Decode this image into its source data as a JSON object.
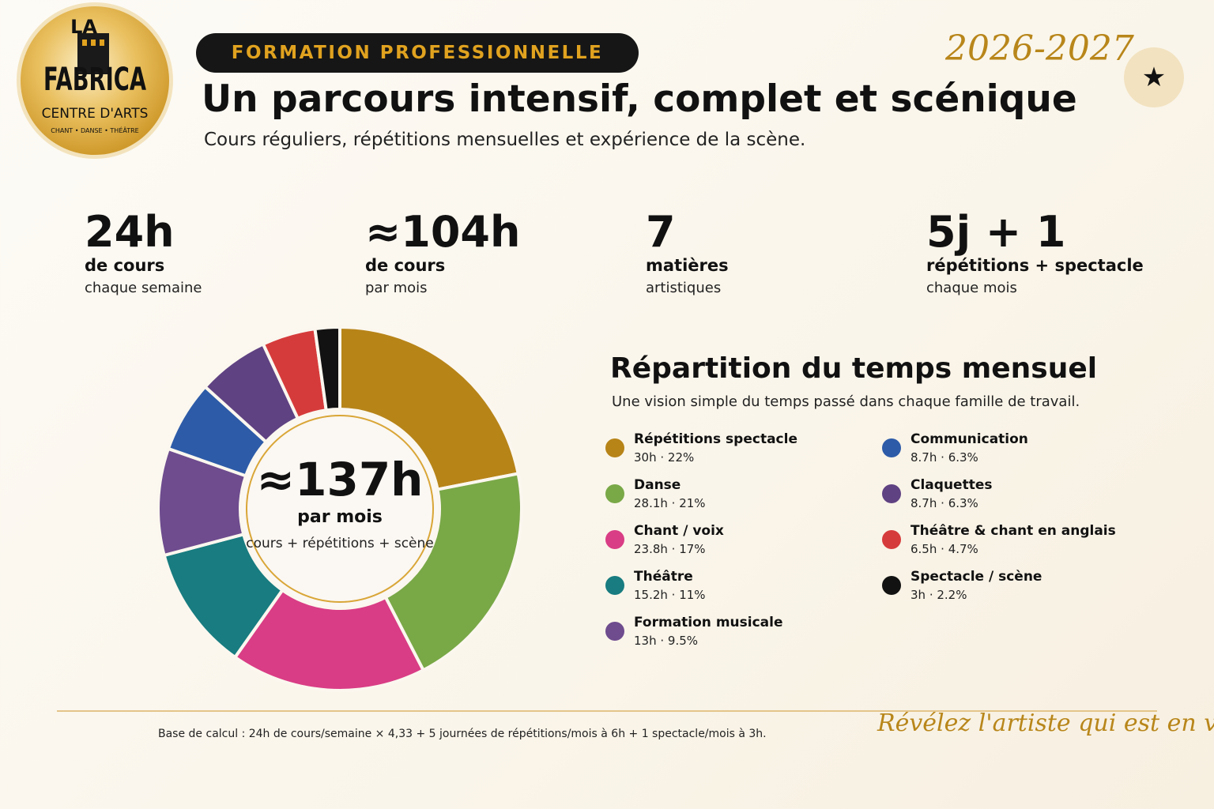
{
  "brand": {
    "logo_top": "LA",
    "logo_main": "FABRICA",
    "logo_sub": "CENTRE D'ARTS",
    "logo_tagline": "CHANT • DANSE • THÉÂTRE",
    "accent": "#e0a21f",
    "gold": "#b8861a"
  },
  "header": {
    "badge": "FORMATION PROFESSIONNELLE",
    "year": "2026-2027",
    "star": "★",
    "title": "Un parcours intensif, complet et scénique",
    "subtitle": "Cours réguliers, répétitions mensuelles et expérience de la scène."
  },
  "stats": [
    {
      "value": "24h",
      "label": "de cours",
      "sub": "chaque semaine"
    },
    {
      "value": "≈104h",
      "label": "de cours",
      "sub": "par mois"
    },
    {
      "value": "7",
      "label": "matières",
      "sub": "artistiques"
    },
    {
      "value": "5j + 1",
      "label": "répétitions + spectacle",
      "sub": "chaque mois"
    }
  ],
  "center": {
    "total": "≈137h",
    "unit": "par mois",
    "detail": "cours + répétitions + scène"
  },
  "repartition": {
    "title": "Répartition du temps mensuel",
    "subtitle": "Une vision simple du temps passé dans chaque famille de travail."
  },
  "chart_data": {
    "type": "pie",
    "variant": "donut",
    "title": "Répartition du temps mensuel",
    "unit": "h",
    "slices": [
      {
        "label": "Répétitions spectacle",
        "value": 30,
        "value_text": "30h",
        "percent_text": "22%",
        "color": "#b78418"
      },
      {
        "label": "Danse",
        "value": 28.1,
        "value_text": "28.1h",
        "percent_text": "21%",
        "color": "#79a847"
      },
      {
        "label": "Chant / voix",
        "value": 23.8,
        "value_text": "23.8h",
        "percent_text": "17%",
        "color": "#d93d85"
      },
      {
        "label": "Théâtre",
        "value": 15.2,
        "value_text": "15.2h",
        "percent_text": "11%",
        "color": "#187c80"
      },
      {
        "label": "Formation musicale",
        "value": 13,
        "value_text": "13h",
        "percent_text": "9.5%",
        "color": "#6e4c8e"
      },
      {
        "label": "Communication",
        "value": 8.7,
        "value_text": "8.7h",
        "percent_text": "6.3%",
        "color": "#2d5ba8"
      },
      {
        "label": "Claquettes",
        "value": 8.7,
        "value_text": "8.7h",
        "percent_text": "6.3%",
        "color": "#5f4282"
      },
      {
        "label": "Théâtre & chant en anglais",
        "value": 6.5,
        "value_text": "6.5h",
        "percent_text": "4.7%",
        "color": "#d63b3b"
      },
      {
        "label": "Spectacle / scène",
        "value": 3,
        "value_text": "3h",
        "percent_text": "2.2%",
        "color": "#121212"
      }
    ],
    "legend_placement": "right"
  },
  "footer": {
    "note": "Base de calcul : 24h de cours/semaine × 4,33 + 5 journées de répétitions/mois à 6h + 1 spectacle/mois à 3h.",
    "slogan": "Révélez l'artiste qui est en vous"
  }
}
